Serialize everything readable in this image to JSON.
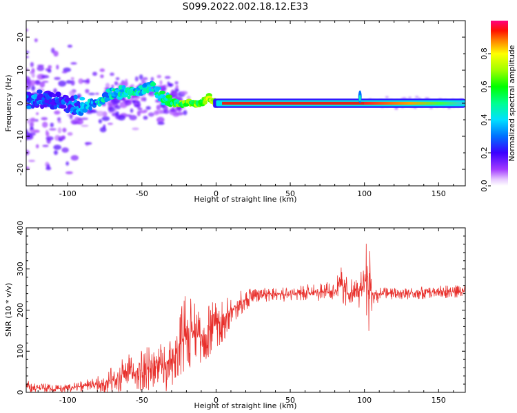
{
  "figure_title": "S099.2022.002.18.12.E33",
  "colors": {
    "snr_line": "#e8302c",
    "ridge": "#e2231a",
    "frame": "#000000"
  },
  "chart_data": [
    {
      "type": "heatmap",
      "title": "S099.2022.002.18.12.E33",
      "xlabel": "Height of straight line (km)",
      "ylabel": "Frequency (Hz)",
      "xlim": [
        -128,
        168
      ],
      "ylim": [
        -25,
        25
      ],
      "xticks": [
        -100,
        -50,
        0,
        50,
        100,
        150
      ],
      "yticks": [
        -20,
        -10,
        0,
        10,
        20
      ],
      "colormap": "rainbow (purple to magenta)",
      "colorbar": {
        "label": "Normalized spectral amplitude",
        "range": [
          0.0,
          1.0
        ],
        "ticks": [
          0.0,
          0.2,
          0.4,
          0.6,
          0.8
        ]
      },
      "ridge": {
        "x": [
          -128,
          -115,
          -100,
          -90,
          -80,
          -70,
          -60,
          -50,
          -43,
          -38,
          -33,
          -28,
          -20,
          -10,
          -5,
          0,
          5,
          10,
          50,
          100,
          150,
          168
        ],
        "y": [
          1,
          1,
          0,
          -1,
          0,
          3,
          3,
          4,
          6,
          2,
          1,
          0,
          0,
          0,
          2,
          0,
          0,
          0,
          0,
          0,
          0,
          0
        ],
        "amplitude": [
          0.3,
          0.2,
          0.2,
          0.3,
          0.35,
          0.4,
          0.45,
          0.4,
          0.4,
          0.45,
          0.5,
          0.55,
          0.6,
          0.65,
          0.7,
          0.75,
          0.9,
          0.9,
          0.95,
          0.95,
          0.6,
          0.45
        ]
      }
    },
    {
      "type": "line",
      "xlabel": "Height of straight line (km)",
      "ylabel": "SNR (10 * v/v)",
      "xlim": [
        -128,
        168
      ],
      "ylim": [
        0,
        400
      ],
      "xticks": [
        -100,
        -50,
        0,
        50,
        100,
        150
      ],
      "yticks": [
        0,
        100,
        200,
        300,
        400
      ],
      "series": [
        {
          "x": [
            -128,
            -120,
            -110,
            -100,
            -90,
            -80,
            -70,
            -60,
            -50,
            -40,
            -35,
            -30,
            -25,
            -20,
            -15,
            -10,
            -5,
            0,
            5,
            10,
            20,
            30,
            40,
            50,
            60,
            70,
            80,
            85,
            90,
            95,
            100,
            102,
            104,
            106,
            110,
            120,
            130,
            140,
            150,
            160,
            168
          ],
          "values": [
            15,
            12,
            8,
            10,
            15,
            20,
            30,
            45,
            55,
            60,
            60,
            80,
            110,
            150,
            145,
            135,
            150,
            165,
            175,
            200,
            225,
            238,
            242,
            238,
            242,
            245,
            245,
            260,
            240,
            245,
            250,
            300,
            250,
            235,
            240,
            242,
            240,
            242,
            244,
            245,
            245
          ],
          "noise": [
            10,
            10,
            8,
            8,
            10,
            15,
            25,
            35,
            40,
            45,
            45,
            60,
            60,
            80,
            60,
            55,
            50,
            45,
            40,
            30,
            20,
            15,
            15,
            15,
            15,
            18,
            20,
            40,
            25,
            30,
            40,
            130,
            80,
            30,
            12,
            12,
            12,
            12,
            12,
            12,
            12
          ]
        }
      ]
    }
  ]
}
